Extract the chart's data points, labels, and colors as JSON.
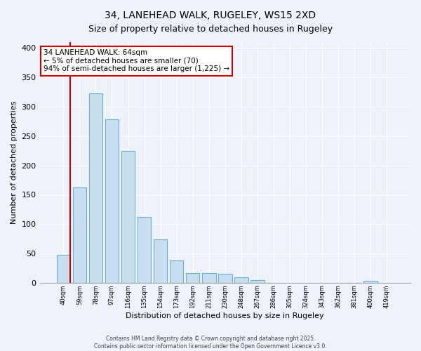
{
  "title": "34, LANEHEAD WALK, RUGELEY, WS15 2XD",
  "subtitle": "Size of property relative to detached houses in Rugeley",
  "xlabel": "Distribution of detached houses by size in Rugeley",
  "ylabel": "Number of detached properties",
  "bar_labels": [
    "40sqm",
    "59sqm",
    "78sqm",
    "97sqm",
    "116sqm",
    "135sqm",
    "154sqm",
    "173sqm",
    "192sqm",
    "211sqm",
    "230sqm",
    "248sqm",
    "267sqm",
    "286sqm",
    "305sqm",
    "324sqm",
    "343sqm",
    "362sqm",
    "381sqm",
    "400sqm",
    "419sqm"
  ],
  "bar_values": [
    48,
    162,
    323,
    278,
    225,
    112,
    74,
    38,
    17,
    17,
    15,
    9,
    5,
    0,
    0,
    0,
    0,
    0,
    0,
    3,
    0
  ],
  "bar_color": "#c8dff0",
  "bar_edge_color": "#6baed6",
  "ylim": [
    0,
    410
  ],
  "yticks": [
    0,
    50,
    100,
    150,
    200,
    250,
    300,
    350,
    400
  ],
  "subject_line_color": "#cc0000",
  "annotation_text": "34 LANEHEAD WALK: 64sqm\n← 5% of detached houses are smaller (70)\n94% of semi-detached houses are larger (1,225) →",
  "annotation_box_color": "#ffffff",
  "annotation_border_color": "#cc0000",
  "footer_line1": "Contains HM Land Registry data © Crown copyright and database right 2025.",
  "footer_line2": "Contains public sector information licensed under the Open Government Licence v3.0.",
  "background_color": "#eef2fa",
  "grid_color": "#ffffff",
  "title_fontsize": 10,
  "subtitle_fontsize": 9
}
